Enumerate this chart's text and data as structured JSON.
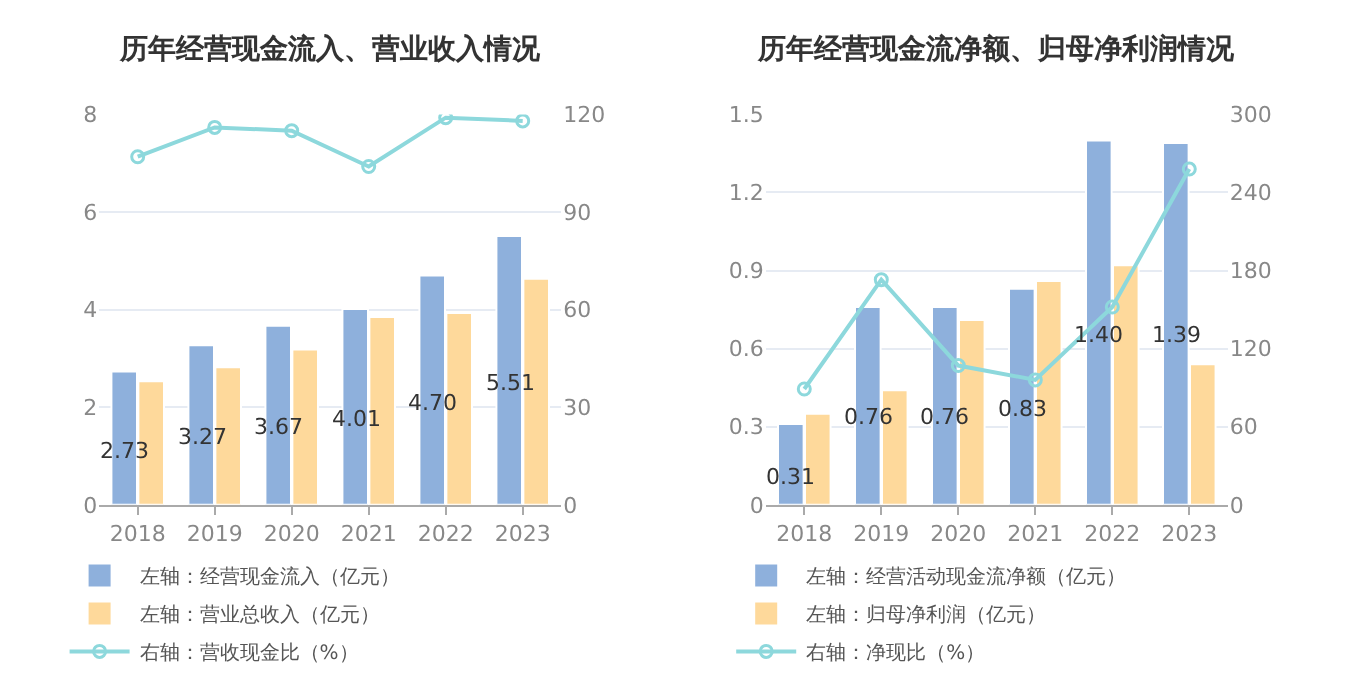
{
  "chart_data": [
    {
      "type": "bar",
      "title": "历年经营现金流入、营业收入情况",
      "categories": [
        "2018",
        "2019",
        "2020",
        "2021",
        "2022",
        "2023"
      ],
      "series": [
        {
          "name": "左轴：经营现金流入（亿元）",
          "color": "#8eb0dc",
          "values": [
            2.73,
            3.27,
            3.67,
            4.01,
            4.7,
            5.51
          ],
          "value_labels": [
            "2.73",
            "3.27",
            "3.67",
            "4.01",
            "4.70",
            "5.51"
          ]
        },
        {
          "name": "左轴：营业总收入（亿元）",
          "color": "#fed99b",
          "values": [
            2.53,
            2.82,
            3.18,
            3.85,
            3.93,
            4.63
          ]
        },
        {
          "name": "右轴：营收现金比（%）",
          "type": "line",
          "axis": "y2",
          "color": "#8dd8dc",
          "values": [
            107,
            116,
            115,
            104,
            119,
            118
          ]
        }
      ],
      "ylim": [
        0,
        8
      ],
      "yticks": [
        0,
        2,
        4,
        6,
        8
      ],
      "y2lim": [
        0,
        120
      ],
      "y2ticks": [
        0,
        30,
        60,
        90,
        120
      ],
      "grid": "y",
      "legend": "bottom",
      "marker": "circle"
    },
    {
      "type": "bar",
      "title": "历年经营现金流净额、归母净利润情况",
      "categories": [
        "2018",
        "2019",
        "2020",
        "2021",
        "2022",
        "2023"
      ],
      "series": [
        {
          "name": "左轴：经营活动现金流净额（亿元）",
          "color": "#8eb0dc",
          "values": [
            0.31,
            0.76,
            0.76,
            0.83,
            1.4,
            1.39
          ],
          "value_labels": [
            "0.31",
            "0.76",
            "0.76",
            "0.83",
            "1.40",
            "1.39"
          ]
        },
        {
          "name": "左轴：归母净利润（亿元）",
          "color": "#fed99b",
          "values": [
            0.35,
            0.44,
            0.71,
            0.86,
            0.92,
            0.54
          ]
        },
        {
          "name": "右轴：净现比（%）",
          "type": "line",
          "axis": "y2",
          "color": "#8dd8dc",
          "values": [
            89,
            173,
            107,
            96,
            152,
            258
          ]
        }
      ],
      "ylim": [
        0,
        1.5
      ],
      "yticks": [
        0,
        0.3,
        0.6,
        0.9,
        1.2,
        1.5
      ],
      "y2lim": [
        0,
        300
      ],
      "y2ticks": [
        0,
        60,
        120,
        180,
        240,
        300
      ],
      "grid": "y",
      "legend": "bottom",
      "marker": "circle"
    }
  ]
}
